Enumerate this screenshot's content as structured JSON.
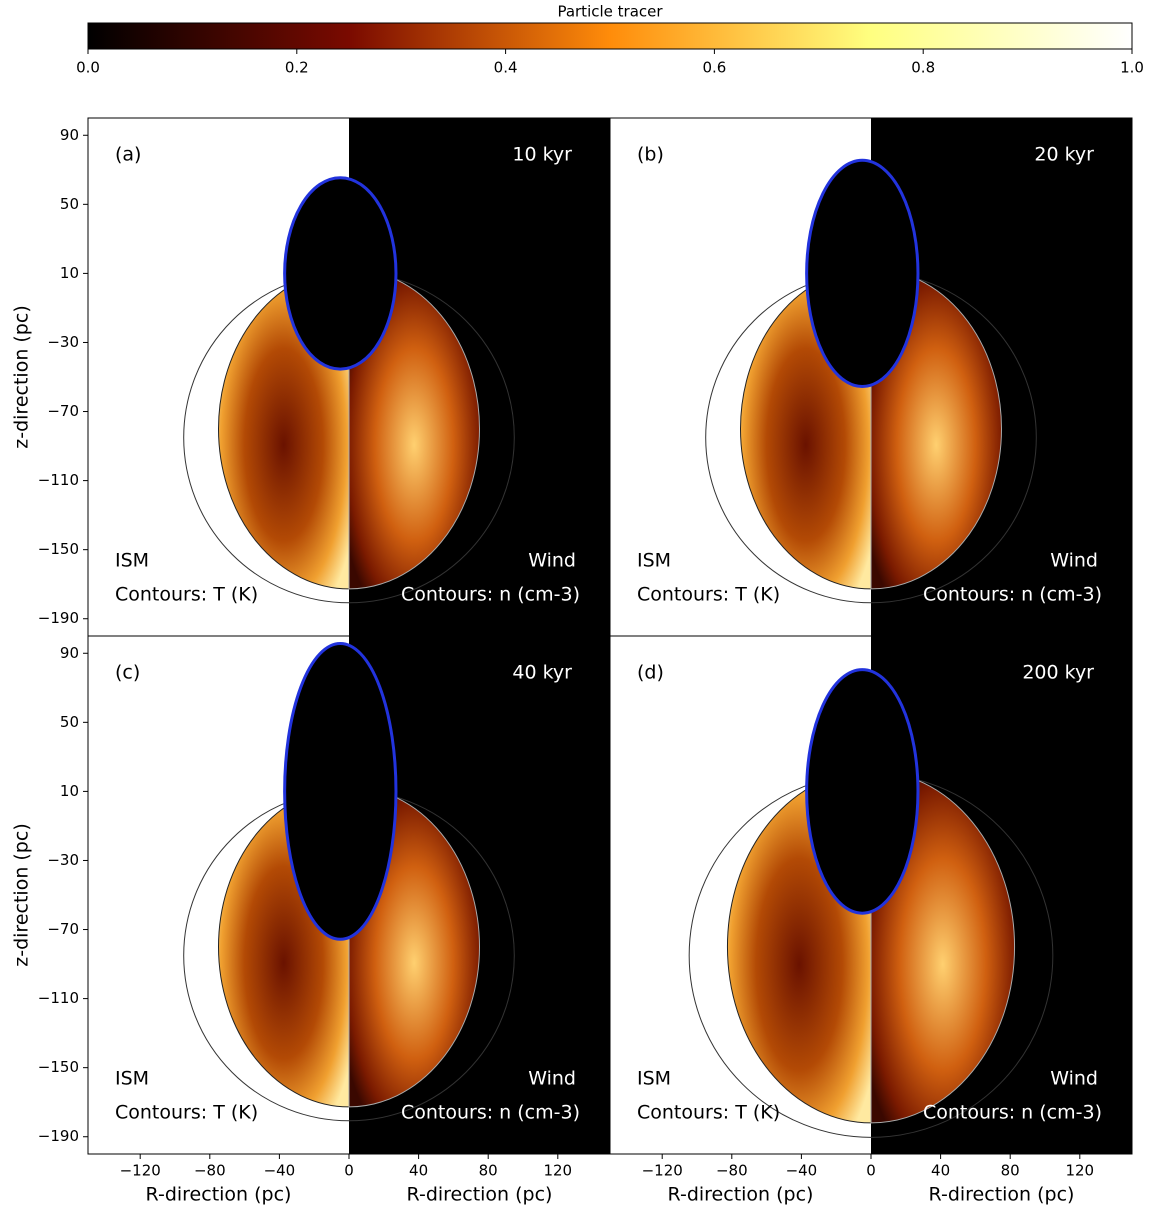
{
  "chart_data": {
    "type": "image-grid",
    "colorbar": {
      "label": "Particle tracer",
      "lim": [
        0,
        1
      ],
      "ticks": [
        {
          "value": 0,
          "label": "0.0"
        },
        0.2,
        0.4,
        0.6,
        0.8,
        {
          "value": 1,
          "label": "1.0"
        }
      ]
    },
    "xlabel": "R-direction (pc)",
    "ylabel": "z-direction (pc)",
    "xlim": [
      -150,
      150
    ],
    "ylim": [
      -200,
      100
    ],
    "xticks": [
      {
        "value": -120,
        "label": "−120"
      },
      {
        "value": -80,
        "label": "−80"
      },
      {
        "value": -40,
        "label": "−40"
      },
      0,
      40,
      80,
      120
    ],
    "yticks": [
      90,
      50,
      10,
      {
        "value": -30,
        "label": "−30"
      },
      {
        "value": -70,
        "label": "−70"
      },
      {
        "value": -110,
        "label": "−110"
      },
      {
        "value": -150,
        "label": "−150"
      },
      {
        "value": -190,
        "label": "−190"
      }
    ],
    "left_annotation": "ISM",
    "left_contours": "Contours: T (K)",
    "right_annotation": "Wind",
    "right_contours": "Contours: n (cm-3)",
    "panels": [
      {
        "label": "(a)",
        "time": "10 kyr"
      },
      {
        "label": "(b)",
        "time": "20 kyr"
      },
      {
        "label": "(c)",
        "time": "40 kyr"
      },
      {
        "label": "(d)",
        "time": "200 kyr"
      }
    ]
  }
}
